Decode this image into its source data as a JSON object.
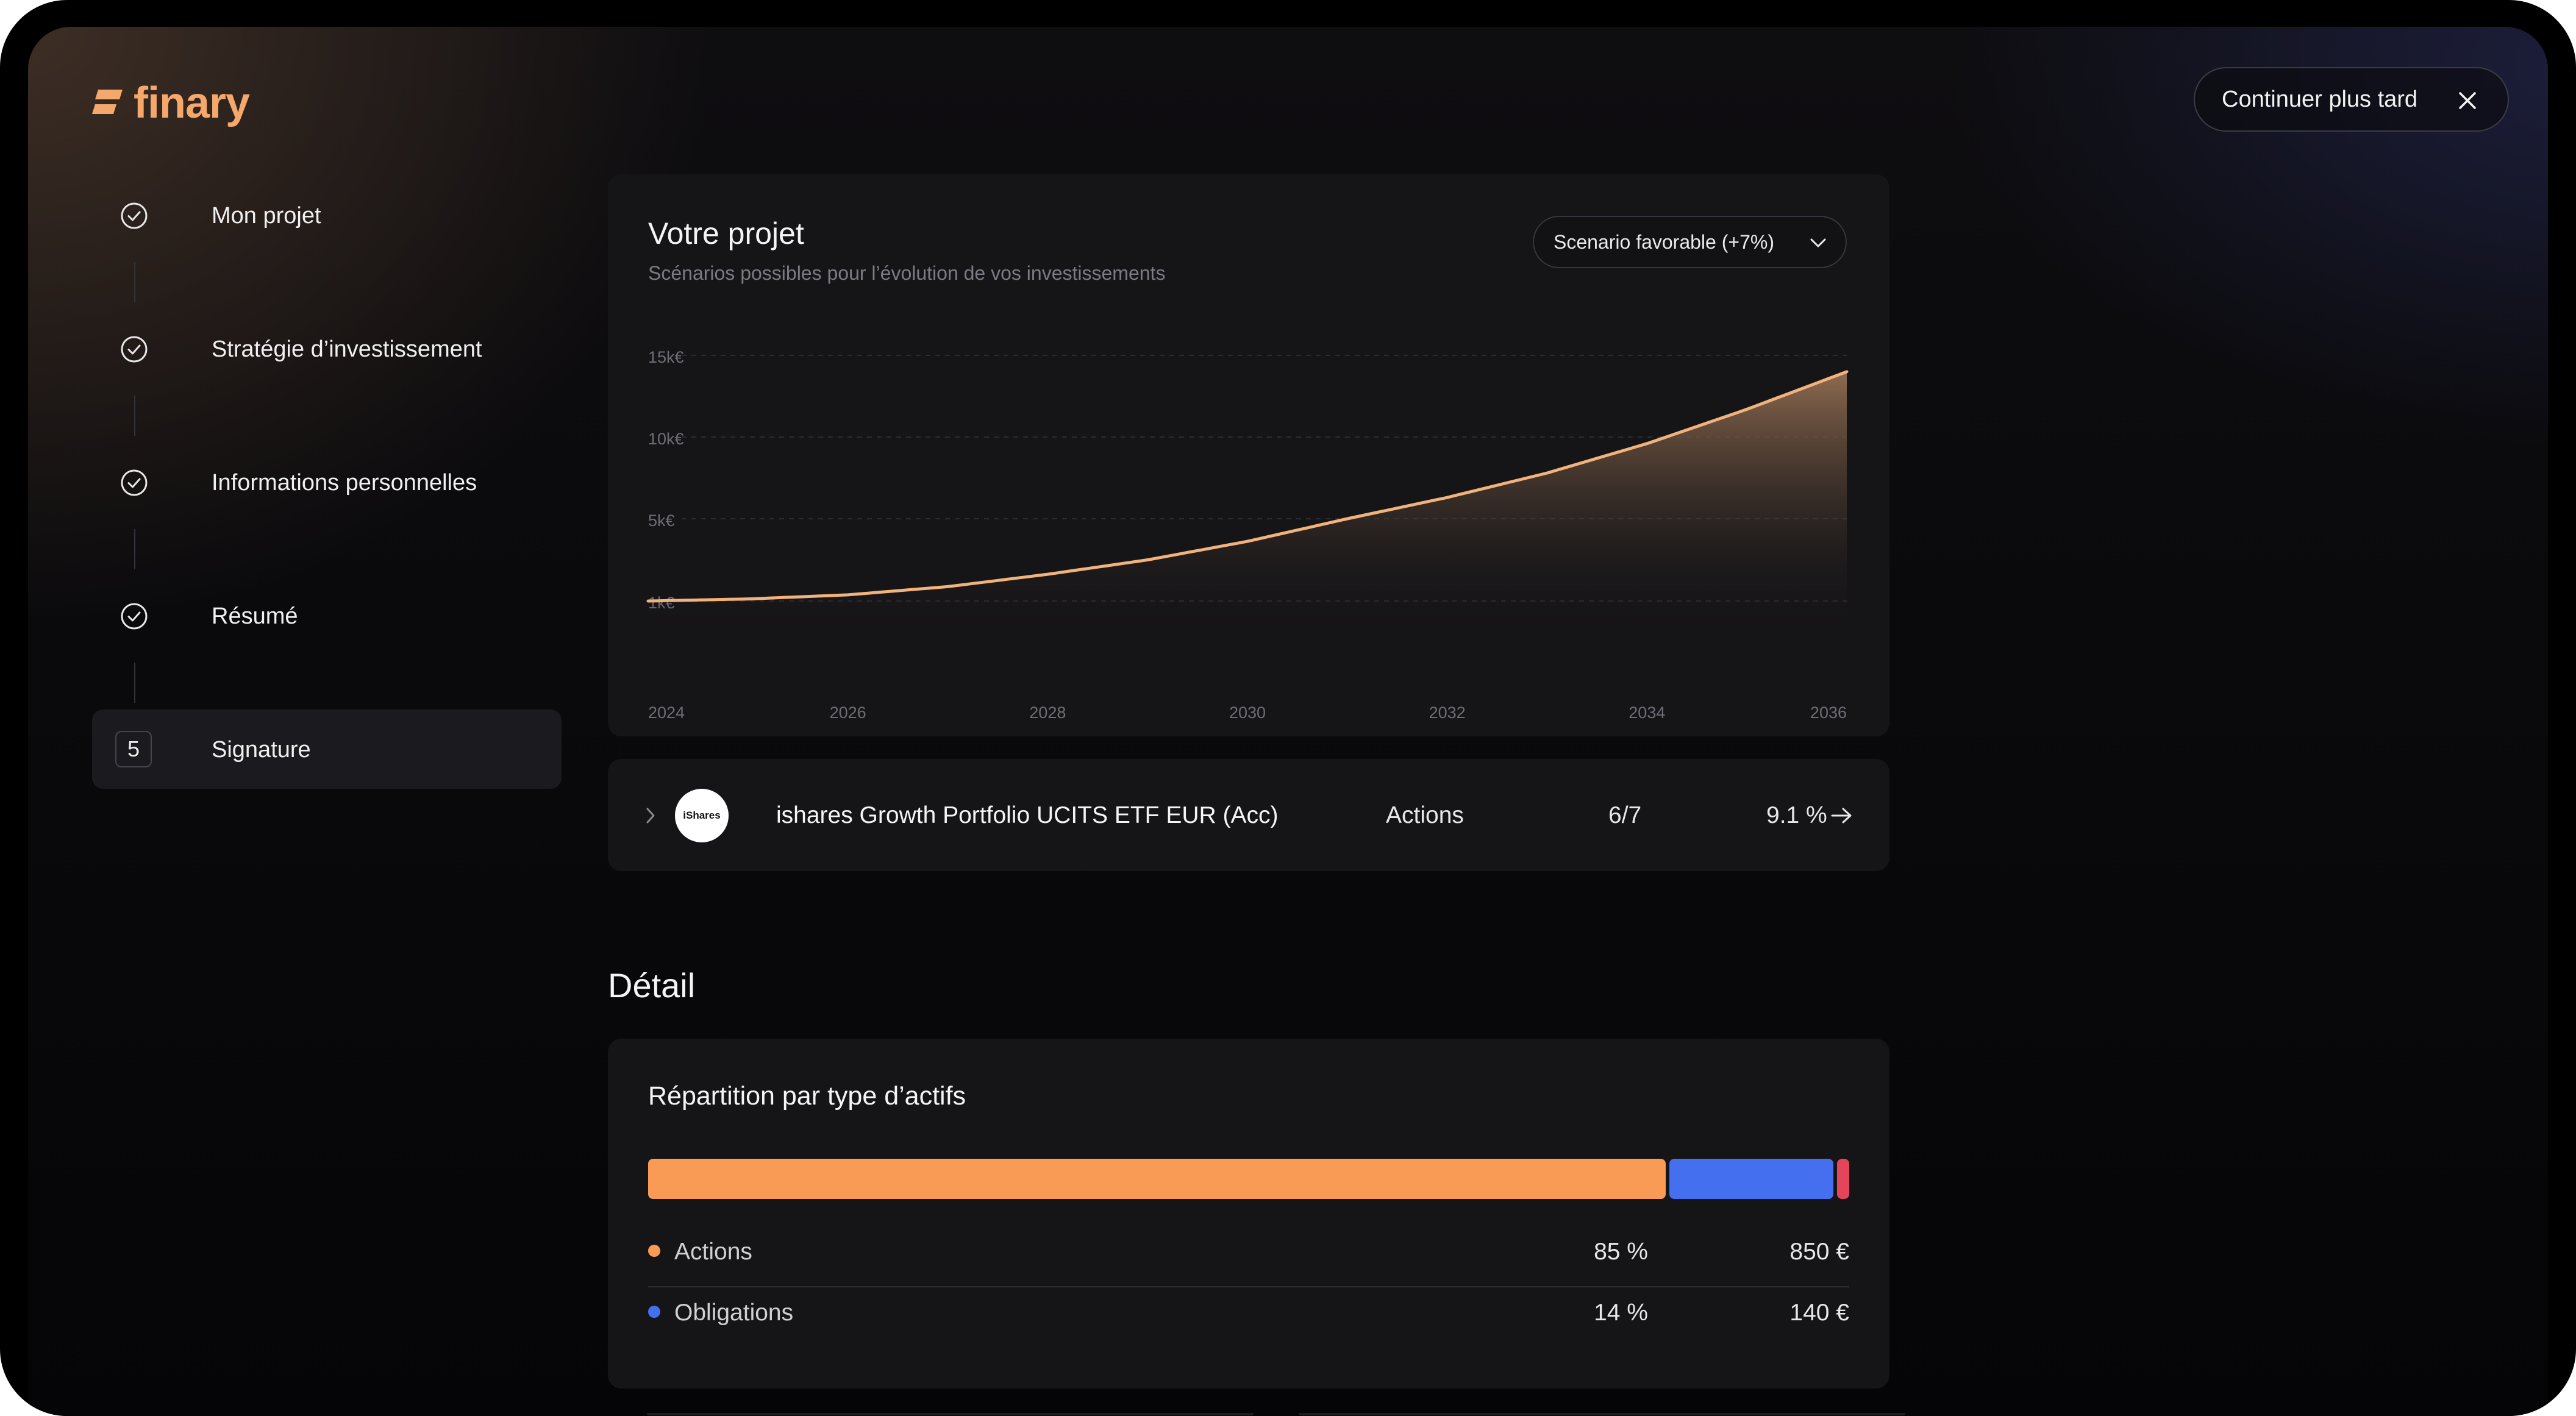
{
  "brand": {
    "name": "finary",
    "accent": "#f5a86b"
  },
  "header": {
    "later_button": "Continuer plus tard"
  },
  "steps": [
    {
      "label": "Mon projet",
      "status": "done"
    },
    {
      "label": "Stratégie d’investissement",
      "status": "done"
    },
    {
      "label": "Informations personnelles",
      "status": "done"
    },
    {
      "label": "Résumé",
      "status": "done"
    },
    {
      "label": "Signature",
      "status": "active",
      "number": "5"
    }
  ],
  "project": {
    "title": "Votre projet",
    "subtitle": "Scénarios possibles pour l’évolution de vos investissements",
    "scenario_select": "Scenario favorable (+7%)"
  },
  "chart_data": {
    "type": "area",
    "y_tick_labels": [
      "15k€",
      "10k€",
      "5k€",
      "1k€"
    ],
    "x_tick_labels": [
      "2024",
      "2026",
      "2028",
      "2030",
      "2032",
      "2034",
      "2036"
    ],
    "x": [
      2024,
      2025,
      2026,
      2027,
      2028,
      2029,
      2030,
      2031,
      2032,
      2033,
      2034,
      2035,
      2036
    ],
    "values": [
      1000,
      1100,
      1300,
      1700,
      2300,
      3000,
      3900,
      5000,
      6300,
      7800,
      9600,
      11700,
      14000
    ],
    "grid": "dashed horizontal",
    "line_color": "#f2b27c"
  },
  "etf": {
    "logo_text": "iShares",
    "name": "ishares Growth Portfolio UCITS ETF EUR (Acc)",
    "type": "Actions",
    "risk": "6/7",
    "performance": "9.1 %"
  },
  "detail": {
    "title": "Détail",
    "allocation_title": "Répartition par type d’actifs",
    "allocation": [
      {
        "name": "Actions",
        "pct_label": "85 %",
        "amount": "850 €",
        "share": 0.85,
        "color": "#f99a55"
      },
      {
        "name": "Obligations",
        "pct_label": "14 %",
        "amount": "140 €",
        "share": 0.14,
        "color": "#4470f0"
      },
      {
        "share": 0.01,
        "color": "#e4455a"
      }
    ]
  }
}
